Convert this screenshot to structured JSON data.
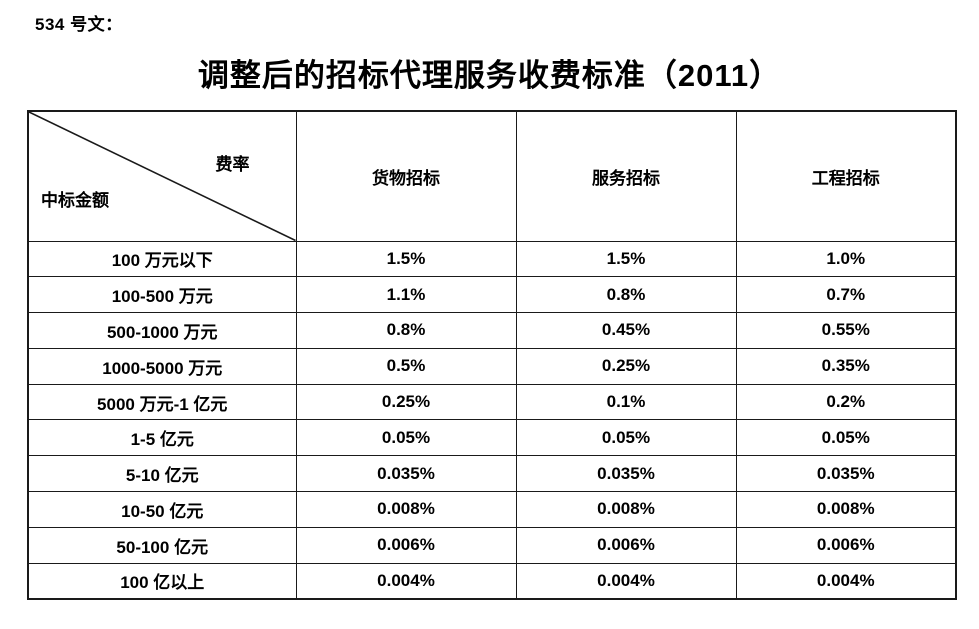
{
  "page": {
    "doc_label": "534 号文：",
    "title": "调整后的招标代理服务收费标准（2011）"
  },
  "table": {
    "corner": {
      "top_right": "费率",
      "bottom_left": "中标金额"
    },
    "columns": [
      "货物招标",
      "服务招标",
      "工程招标"
    ],
    "rows": [
      {
        "tier": "100 万元以下",
        "values": [
          "1.5%",
          "1.5%",
          "1.0%"
        ]
      },
      {
        "tier": "100-500 万元",
        "values": [
          "1.1%",
          "0.8%",
          "0.7%"
        ]
      },
      {
        "tier": "500-1000 万元",
        "values": [
          "0.8%",
          "0.45%",
          "0.55%"
        ]
      },
      {
        "tier": "1000-5000 万元",
        "values": [
          "0.5%",
          "0.25%",
          "0.35%"
        ]
      },
      {
        "tier": "5000 万元-1 亿元",
        "values": [
          "0.25%",
          "0.1%",
          "0.2%"
        ]
      },
      {
        "tier": "1-5 亿元",
        "values": [
          "0.05%",
          "0.05%",
          "0.05%"
        ]
      },
      {
        "tier": "5-10 亿元",
        "values": [
          "0.035%",
          "0.035%",
          "0.035%"
        ]
      },
      {
        "tier": "10-50 亿元",
        "values": [
          "0.008%",
          "0.008%",
          "0.008%"
        ]
      },
      {
        "tier": "50-100 亿元",
        "values": [
          "0.006%",
          "0.006%",
          "0.006%"
        ]
      },
      {
        "tier": "100 亿以上",
        "values": [
          "0.004%",
          "0.004%",
          "0.004%"
        ]
      }
    ]
  }
}
